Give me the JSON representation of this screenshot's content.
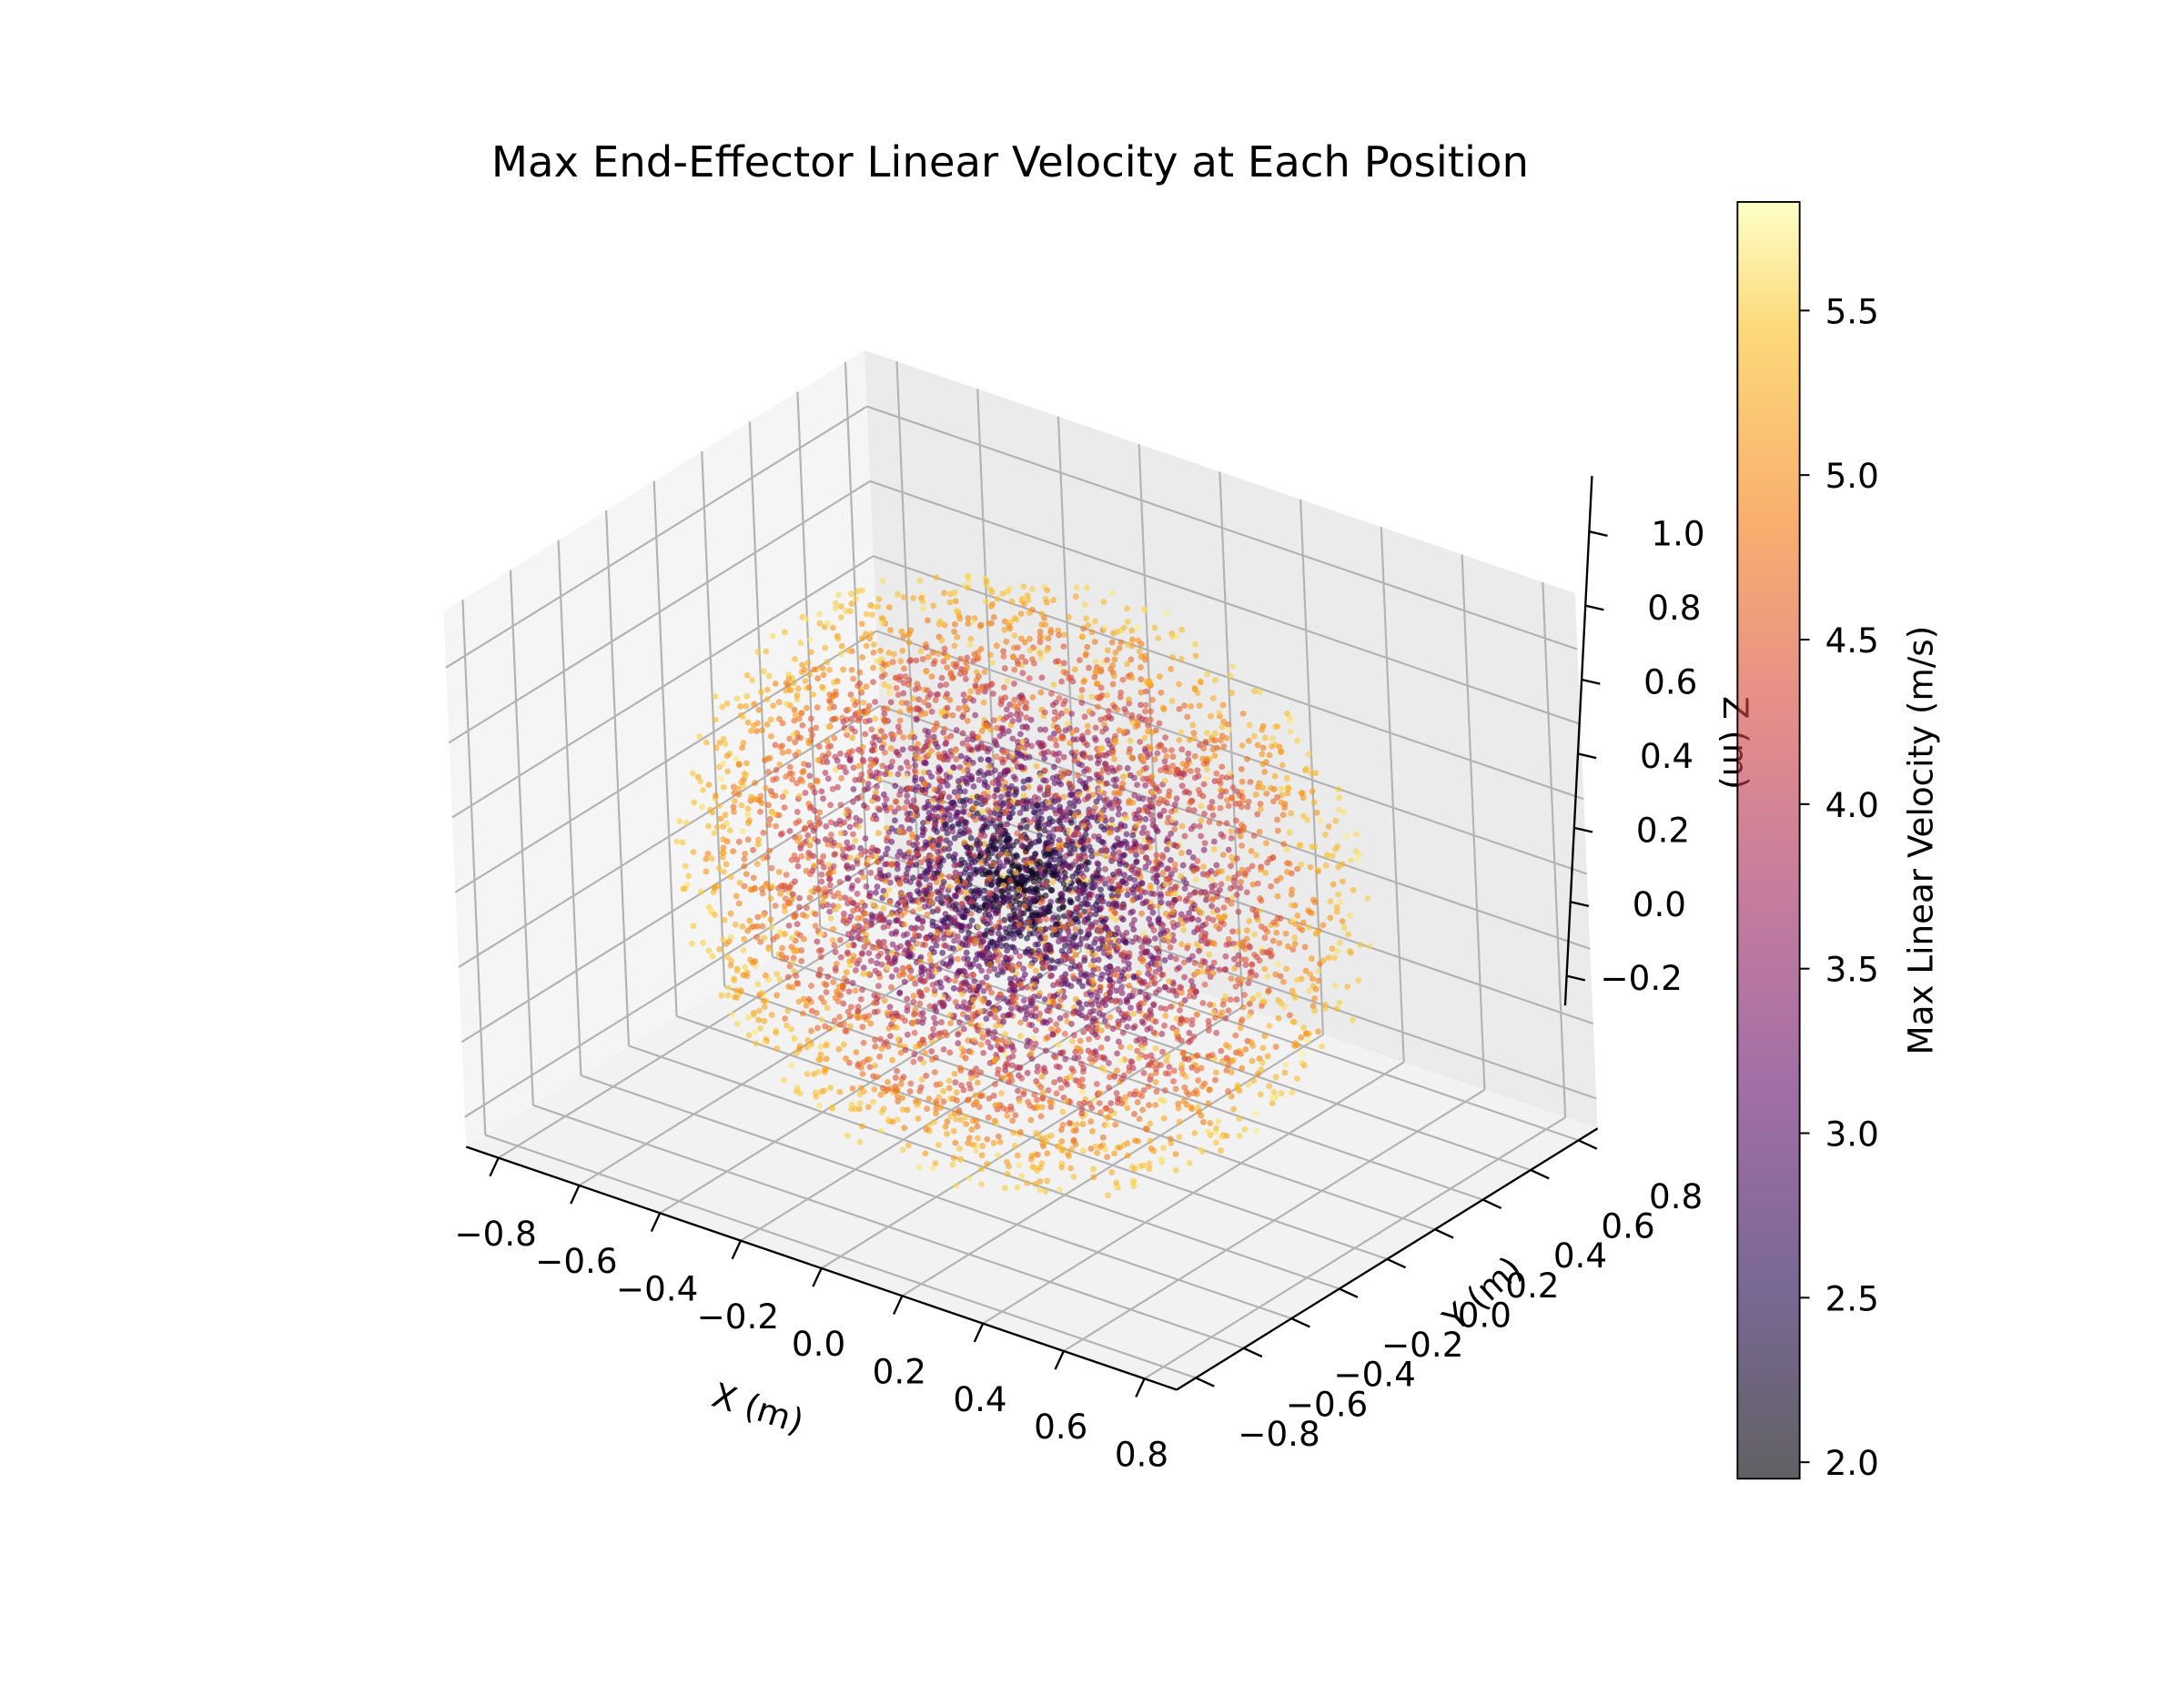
{
  "chart_data": {
    "type": "scatter",
    "title": "Max End-Effector Linear Velocity at Each Position",
    "xlabel": "X (m)",
    "ylabel": "Y (m)",
    "zlabel": "Z (m)",
    "xlim": [
      -0.88,
      0.88
    ],
    "ylim": [
      -0.88,
      0.88
    ],
    "zlim": [
      -0.28,
      1.15
    ],
    "x_ticks": [
      "−0.8",
      "−0.6",
      "−0.4",
      "−0.2",
      "0.0",
      "0.2",
      "0.4",
      "0.6",
      "0.8"
    ],
    "y_ticks": [
      "−0.8",
      "−0.6",
      "−0.4",
      "−0.2",
      "0.0",
      "0.2",
      "0.4",
      "0.6",
      "0.8"
    ],
    "z_ticks": [
      "−0.2",
      "0.0",
      "0.2",
      "0.4",
      "0.6",
      "0.8",
      "1.0"
    ],
    "grid": true,
    "colormap": "inferno",
    "marker_alpha": 0.6,
    "colorbar": {
      "label": "Max Linear Velocity (m/s)",
      "range": [
        1.95,
        5.83
      ],
      "ticks": [
        "2.0",
        "2.5",
        "3.0",
        "3.5",
        "4.0",
        "4.5",
        "5.0",
        "5.5"
      ]
    },
    "distribution": {
      "shape": "solid sphere (workspace samples)",
      "center": [
        0.0,
        0.0,
        0.4
      ],
      "radius": 0.75,
      "approx_point_count": 6000,
      "velocity_at_center": 2.0,
      "velocity_at_outer_shell": 5.5
    }
  }
}
